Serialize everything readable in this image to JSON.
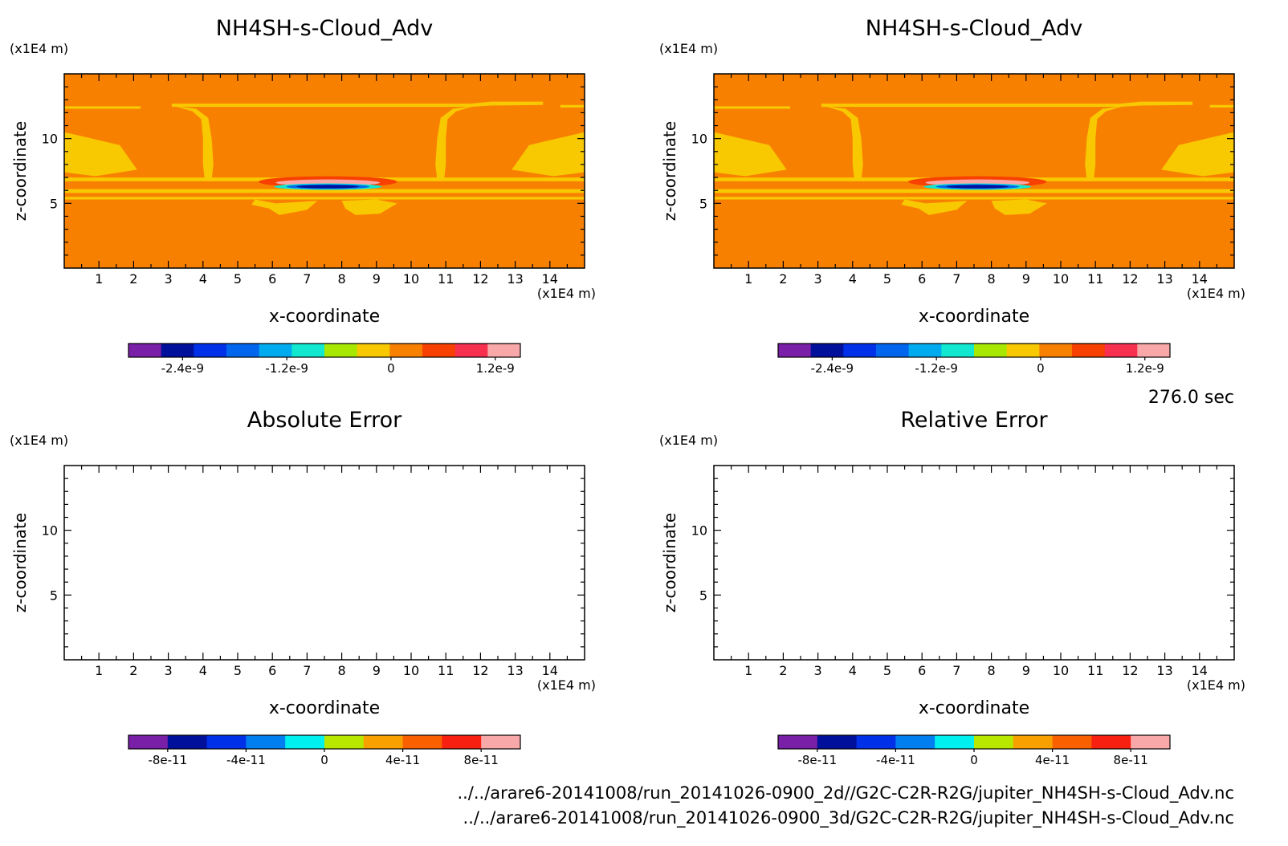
{
  "time_label": "276.0 sec",
  "file_paths": [
    "../../arare6-20141008/run_20141026-0900_2d//G2C-C2R-R2G/jupiter_NH4SH-s-Cloud_Adv.nc",
    "../../arare6-20141008/run_20141026-0900_3d/G2C-C2R-R2G/jupiter_NH4SH-s-Cloud_Adv.nc"
  ],
  "chart_data": [
    {
      "type": "heatmap",
      "title": "NH4SH-s-Cloud_Adv",
      "xlabel": "x-coordinate",
      "ylabel": "z-coordinate",
      "x_unit": "(x1E4 m)",
      "y_unit": "(x1E4 m)",
      "xlim": [
        0,
        15
      ],
      "ylim": [
        0,
        15
      ],
      "x_ticks": [
        "1",
        "2",
        "3",
        "4",
        "5",
        "6",
        "7",
        "8",
        "9",
        "10",
        "11",
        "12",
        "13",
        "14"
      ],
      "y_ticks": [
        "5",
        "10"
      ],
      "colorbar": {
        "colors": [
          "#7a1fa8",
          "#00109a",
          "#0030e8",
          "#0066ee",
          "#00aaee",
          "#10e8d0",
          "#a8e800",
          "#f8c800",
          "#f88000",
          "#f84000",
          "#f83050",
          "#f8a8a8"
        ],
        "tick_labels": [
          "-2.4e-9",
          "-1.2e-9",
          "0",
          "1.2e-9"
        ]
      },
      "field": "NH4SH-s cloud advection tendency, background near 0 with a dipole near x=7.5, z=6.3"
    },
    {
      "type": "heatmap",
      "title": "NH4SH-s-Cloud_Adv",
      "xlabel": "x-coordinate",
      "ylabel": "z-coordinate",
      "x_unit": "(x1E4 m)",
      "y_unit": "(x1E4 m)",
      "xlim": [
        0,
        15
      ],
      "ylim": [
        0,
        15
      ],
      "x_ticks": [
        "1",
        "2",
        "3",
        "4",
        "5",
        "6",
        "7",
        "8",
        "9",
        "10",
        "11",
        "12",
        "13",
        "14"
      ],
      "y_ticks": [
        "5",
        "10"
      ],
      "colorbar": {
        "colors": [
          "#7a1fa8",
          "#00109a",
          "#0030e8",
          "#0066ee",
          "#00aaee",
          "#10e8d0",
          "#a8e800",
          "#f8c800",
          "#f88000",
          "#f84000",
          "#f83050",
          "#f8a8a8"
        ],
        "tick_labels": [
          "-2.4e-9",
          "-1.2e-9",
          "0",
          "1.2e-9"
        ]
      }
    },
    {
      "type": "heatmap",
      "title": "Absolute Error",
      "xlabel": "x-coordinate",
      "ylabel": "z-coordinate",
      "x_unit": "(x1E4 m)",
      "y_unit": "(x1E4 m)",
      "xlim": [
        0,
        15
      ],
      "ylim": [
        0,
        15
      ],
      "x_ticks": [
        "1",
        "2",
        "3",
        "4",
        "5",
        "6",
        "7",
        "8",
        "9",
        "10",
        "11",
        "12",
        "13",
        "14"
      ],
      "y_ticks": [
        "5",
        "10"
      ],
      "colorbar": {
        "colors": [
          "#7a1fa8",
          "#00109a",
          "#0030e8",
          "#0080f0",
          "#00f0f0",
          "#b8e800",
          "#f8a000",
          "#f86000",
          "#f82010",
          "#f8a8a8"
        ],
        "tick_labels": [
          "-8e-11",
          "-4e-11",
          "0",
          "4e-11",
          "8e-11"
        ]
      },
      "field": "empty (all values zero)"
    },
    {
      "type": "heatmap",
      "title": "Relative Error",
      "xlabel": "x-coordinate",
      "ylabel": "z-coordinate",
      "x_unit": "(x1E4 m)",
      "y_unit": "(x1E4 m)",
      "xlim": [
        0,
        15
      ],
      "ylim": [
        0,
        15
      ],
      "x_ticks": [
        "1",
        "2",
        "3",
        "4",
        "5",
        "6",
        "7",
        "8",
        "9",
        "10",
        "11",
        "12",
        "13",
        "14"
      ],
      "y_ticks": [
        "5",
        "10"
      ],
      "colorbar": {
        "colors": [
          "#7a1fa8",
          "#00109a",
          "#0030e8",
          "#0080f0",
          "#00f0f0",
          "#b8e800",
          "#f8a000",
          "#f86000",
          "#f82010",
          "#f8a8a8"
        ],
        "tick_labels": [
          "-8e-11",
          "-4e-11",
          "0",
          "4e-11",
          "8e-11"
        ]
      },
      "field": "empty (all values zero)"
    }
  ]
}
